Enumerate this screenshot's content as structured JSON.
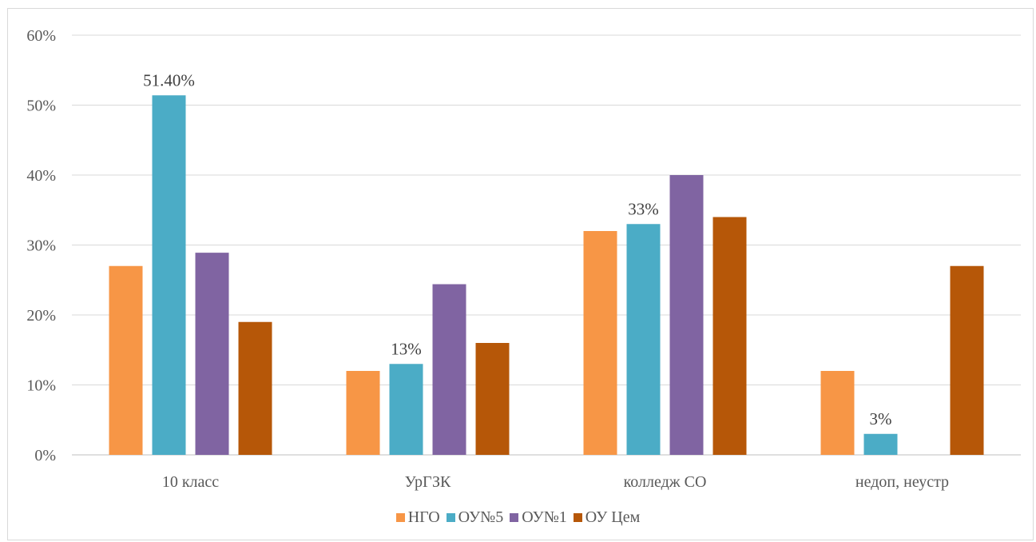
{
  "chart_data": {
    "type": "bar",
    "categories": [
      "10 класс",
      "УрГЗК",
      "колледж СО",
      "недоп, неустр"
    ],
    "series": [
      {
        "name": "НГО",
        "color": "#F79646",
        "values": [
          27,
          12,
          32,
          12
        ]
      },
      {
        "name": "ОУ№5",
        "color": "#4BACC6",
        "values": [
          51.4,
          13,
          33,
          3
        ]
      },
      {
        "name": "ОУ№1",
        "color": "#8064A2",
        "values": [
          28.9,
          24.4,
          40,
          0
        ]
      },
      {
        "name": "ОУ Цем",
        "color": "#B65708",
        "values": [
          19,
          16,
          34,
          27
        ]
      }
    ],
    "data_labels": [
      {
        "series": 1,
        "category": 0,
        "text": "51.40%"
      },
      {
        "series": 1,
        "category": 1,
        "text": "13%"
      },
      {
        "series": 1,
        "category": 2,
        "text": "33%"
      },
      {
        "series": 1,
        "category": 3,
        "text": "3%"
      }
    ],
    "y_ticks": [
      "0%",
      "10%",
      "20%",
      "30%",
      "40%",
      "50%",
      "60%"
    ],
    "ylim": [
      0,
      60
    ],
    "grid": true,
    "legend_position": "bottom",
    "title": "",
    "xlabel": "",
    "ylabel": ""
  }
}
